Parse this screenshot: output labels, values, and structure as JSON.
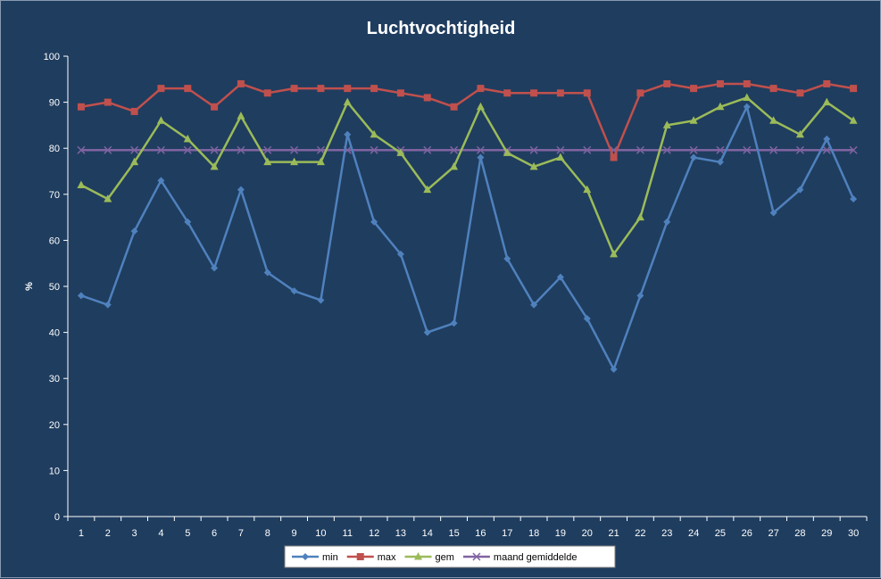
{
  "chart_data": {
    "type": "line",
    "title": "Luchtvochtigheid",
    "xlabel": "",
    "ylabel": "%",
    "ylim": [
      0,
      100
    ],
    "yticks": [
      0,
      10,
      20,
      30,
      40,
      50,
      60,
      70,
      80,
      90,
      100
    ],
    "x": [
      1,
      2,
      3,
      4,
      5,
      6,
      7,
      8,
      9,
      10,
      11,
      12,
      13,
      14,
      15,
      16,
      17,
      18,
      19,
      20,
      21,
      22,
      23,
      24,
      25,
      26,
      27,
      28,
      29,
      30
    ],
    "grid": false,
    "legend_position": "bottom",
    "series": [
      {
        "name": "min",
        "color": "#4f81bd",
        "marker": "diamond",
        "values": [
          48,
          46,
          62,
          73,
          64,
          54,
          71,
          53,
          49,
          47,
          83,
          64,
          57,
          40,
          42,
          78,
          56,
          46,
          52,
          43,
          32,
          48,
          64,
          78,
          77,
          89,
          66,
          71,
          82,
          69
        ]
      },
      {
        "name": "max",
        "color": "#c0504d",
        "marker": "square",
        "values": [
          89,
          90,
          88,
          93,
          93,
          89,
          94,
          92,
          93,
          93,
          93,
          93,
          92,
          91,
          89,
          93,
          92,
          92,
          92,
          92,
          78,
          92,
          94,
          93,
          94,
          94,
          93,
          92,
          94,
          93
        ]
      },
      {
        "name": "gem",
        "color": "#9bbb59",
        "marker": "triangle",
        "values": [
          72,
          69,
          77,
          86,
          82,
          76,
          87,
          77,
          77,
          77,
          90,
          83,
          79,
          71,
          76,
          89,
          79,
          76,
          78,
          71,
          57,
          65,
          85,
          86,
          89,
          91,
          86,
          83,
          90,
          86
        ]
      },
      {
        "name": "maand gemiddelde",
        "color": "#8064a2",
        "marker": "x",
        "values": [
          79.6,
          79.6,
          79.6,
          79.6,
          79.6,
          79.6,
          79.6,
          79.6,
          79.6,
          79.6,
          79.6,
          79.6,
          79.6,
          79.6,
          79.6,
          79.6,
          79.6,
          79.6,
          79.6,
          79.6,
          79.6,
          79.6,
          79.6,
          79.6,
          79.6,
          79.6,
          79.6,
          79.6,
          79.6,
          79.6
        ]
      }
    ]
  }
}
